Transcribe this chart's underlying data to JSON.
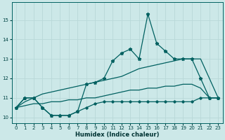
{
  "xlabel": "Humidex (Indice chaleur)",
  "xlim": [
    -0.5,
    23.5
  ],
  "ylim": [
    9.7,
    15.9
  ],
  "yticks": [
    10,
    11,
    12,
    13,
    14,
    15
  ],
  "xticks": [
    0,
    1,
    2,
    3,
    4,
    5,
    6,
    7,
    8,
    9,
    10,
    11,
    12,
    13,
    14,
    15,
    16,
    17,
    18,
    19,
    20,
    21,
    22,
    23
  ],
  "background_color": "#cce8e8",
  "grid_color": "#b8d8d8",
  "line_color": "#006060",
  "hours": [
    0,
    1,
    2,
    3,
    4,
    5,
    6,
    7,
    8,
    9,
    10,
    11,
    12,
    13,
    14,
    15,
    16,
    17,
    18,
    19,
    20,
    21,
    22,
    23
  ],
  "max_line": [
    10.5,
    11.0,
    11.0,
    10.5,
    10.1,
    10.1,
    10.1,
    10.3,
    11.7,
    11.8,
    12.0,
    12.9,
    13.3,
    13.5,
    13.0,
    15.3,
    13.8,
    13.4,
    13.0,
    13.0,
    13.0,
    12.0,
    11.0,
    11.0
  ],
  "min_line": [
    10.5,
    11.0,
    11.0,
    10.5,
    10.1,
    10.1,
    10.1,
    10.3,
    10.5,
    10.7,
    10.8,
    10.8,
    10.8,
    10.8,
    10.8,
    10.8,
    10.8,
    10.8,
    10.8,
    10.8,
    10.8,
    11.0,
    11.0,
    11.0
  ],
  "upper_trend": [
    10.5,
    10.8,
    11.0,
    11.2,
    11.3,
    11.4,
    11.5,
    11.6,
    11.7,
    11.8,
    11.9,
    12.0,
    12.1,
    12.3,
    12.5,
    12.6,
    12.7,
    12.8,
    12.9,
    13.0,
    13.0,
    13.0,
    12.0,
    11.0
  ],
  "lower_trend": [
    10.5,
    10.6,
    10.7,
    10.7,
    10.8,
    10.8,
    10.9,
    10.9,
    11.0,
    11.0,
    11.1,
    11.2,
    11.3,
    11.4,
    11.4,
    11.5,
    11.5,
    11.6,
    11.6,
    11.7,
    11.7,
    11.5,
    11.0,
    11.0
  ]
}
